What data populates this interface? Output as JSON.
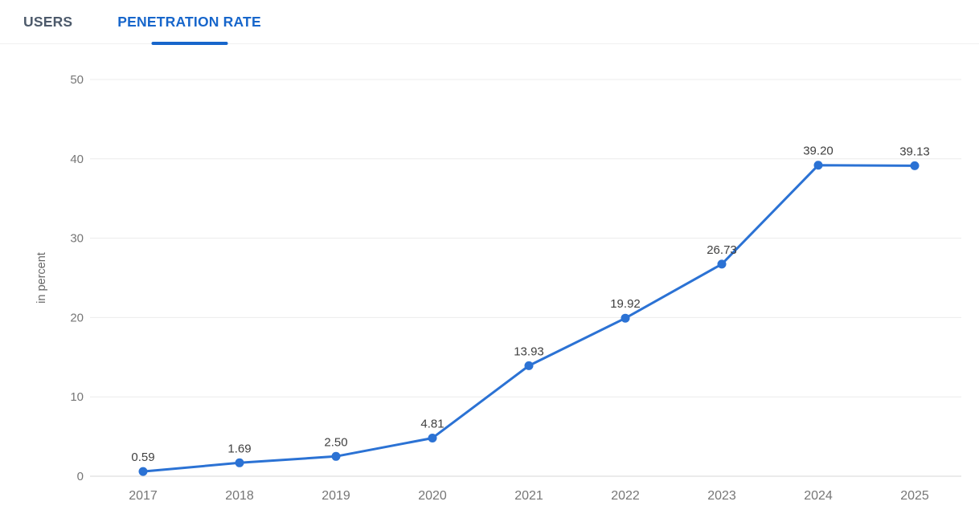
{
  "tabs": [
    {
      "label": "USERS",
      "active": false
    },
    {
      "label": "PENETRATION RATE",
      "active": true
    }
  ],
  "colors": {
    "line": "#2b72d4",
    "marker": "#2b72d4",
    "active_tab": "#1766cb",
    "inactive_tab": "#4d5a6b",
    "grid": "#ececec",
    "axis_line": "#d7d7d7",
    "tick_text": "#767676",
    "data_label_text": "#404040"
  },
  "chart_data": {
    "type": "line",
    "categories": [
      "2017",
      "2018",
      "2019",
      "2020",
      "2021",
      "2022",
      "2023",
      "2024",
      "2025"
    ],
    "values": [
      0.59,
      1.69,
      2.5,
      4.81,
      13.93,
      19.92,
      26.73,
      39.2,
      39.13
    ],
    "data_labels": [
      "0.59",
      "1.69",
      "2.50",
      "4.81",
      "13.93",
      "19.92",
      "26.73",
      "39.20",
      "39.13"
    ],
    "title": "",
    "xlabel": "",
    "ylabel": "in percent",
    "ylim": [
      0,
      50
    ],
    "yticks": [
      0,
      10,
      20,
      30,
      40,
      50
    ],
    "grid": true,
    "legend": "none"
  }
}
